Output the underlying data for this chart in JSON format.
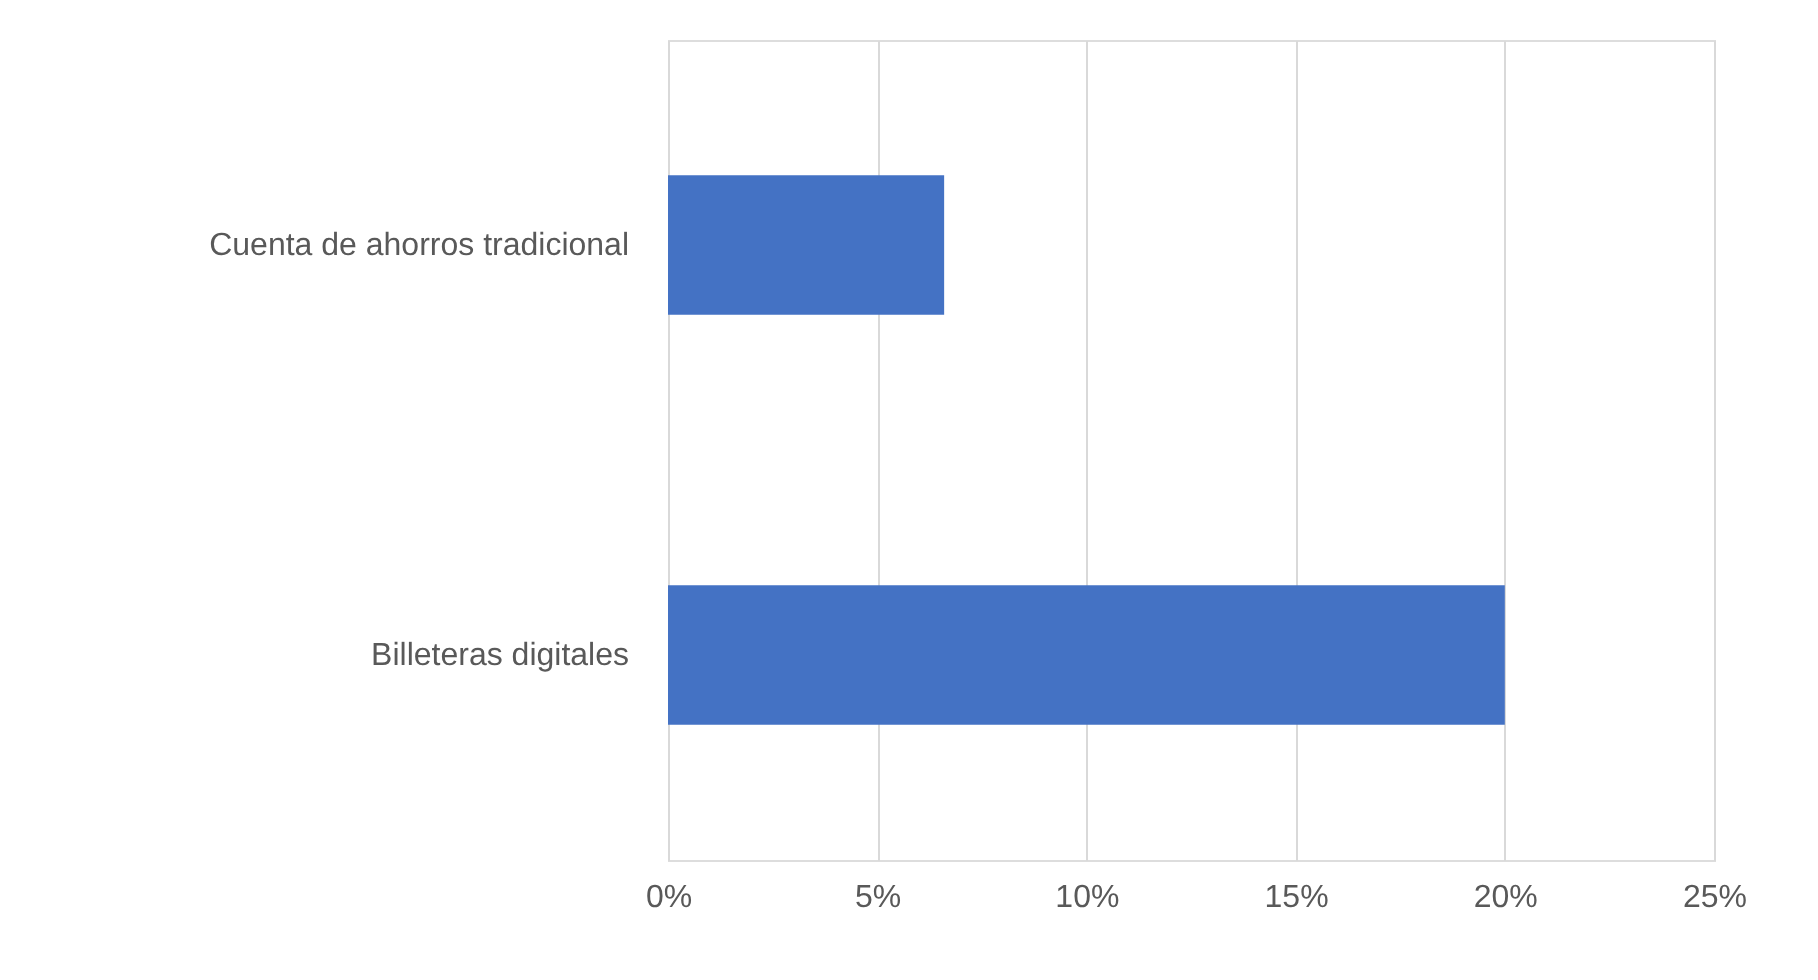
{
  "chart_data": {
    "type": "bar",
    "orientation": "horizontal",
    "categories": [
      "Cuenta de ahorros tradicional",
      "Billeteras digitales"
    ],
    "values": [
      6.6,
      20
    ],
    "color": "#4472c4",
    "xlim": [
      0,
      25
    ],
    "xticks": [
      {
        "value": 0,
        "label": "0%"
      },
      {
        "value": 5,
        "label": "5%"
      },
      {
        "value": 10,
        "label": "10%"
      },
      {
        "value": 15,
        "label": "15%"
      },
      {
        "value": 20,
        "label": "20%"
      },
      {
        "value": 25,
        "label": "25%"
      }
    ],
    "grid": "x"
  }
}
